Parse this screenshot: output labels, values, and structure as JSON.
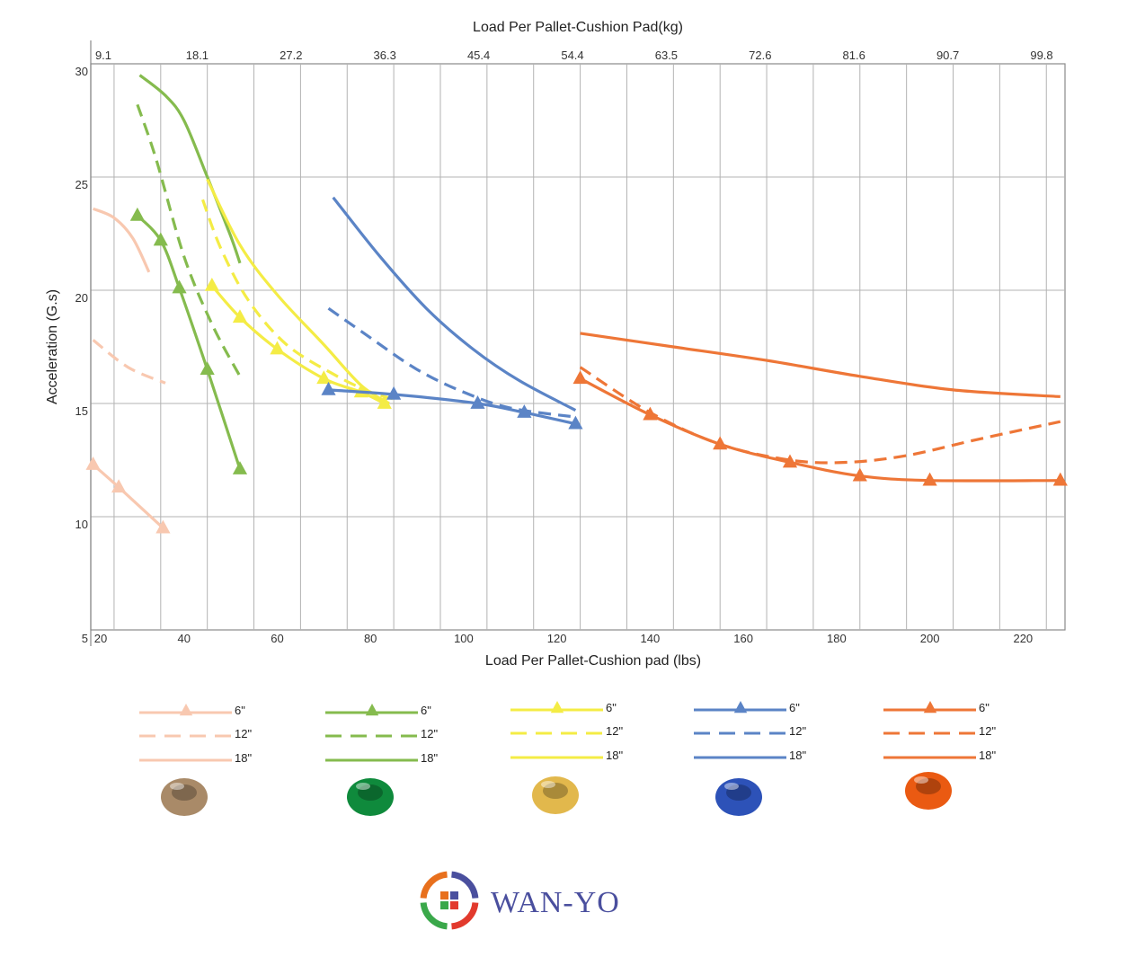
{
  "chart_data": {
    "type": "line",
    "top_axis_label": "Load Per Pallet-Cushion Pad(kg)",
    "top_ticks": [
      "9.1",
      "18.1",
      "27.2",
      "36.3",
      "45.4",
      "54.4",
      "63.5",
      "72.6",
      "81.6",
      "90.7",
      "99.8"
    ],
    "xlabel": "Load Per Pallet-Cushion pad (lbs)",
    "ylabel": "Acceleration (G.s)",
    "xlim": [
      20,
      229
    ],
    "ylim": [
      5,
      30
    ],
    "x_ticks": [
      "20",
      "40",
      "60",
      "80",
      "100",
      "120",
      "140",
      "160",
      "180",
      "200",
      "220"
    ],
    "y_ticks": [
      "5",
      "10",
      "15",
      "20",
      "25",
      "30"
    ],
    "grid": true,
    "series": [
      {
        "color": "#f8c8b0",
        "thickness": "6\"",
        "style": "solid",
        "marker": "triangle",
        "points": [
          [
            20.5,
            12.3
          ],
          [
            26,
            11.3
          ],
          [
            35.5,
            9.5
          ]
        ]
      },
      {
        "color": "#f8c8b0",
        "thickness": "12\"",
        "style": "dashed",
        "marker": "none",
        "points": [
          [
            20.5,
            17.8
          ],
          [
            28,
            16.6
          ],
          [
            36,
            15.9
          ]
        ]
      },
      {
        "color": "#f8c8b0",
        "thickness": "18\"",
        "style": "solid",
        "marker": "none",
        "points": [
          [
            20.5,
            23.6
          ],
          [
            25,
            23.2
          ],
          [
            29,
            22.3
          ],
          [
            32.5,
            20.8
          ]
        ]
      },
      {
        "color": "#85bb4e",
        "thickness": "6\"",
        "style": "solid",
        "marker": "triangle",
        "points": [
          [
            30,
            23.3
          ],
          [
            35,
            22.2
          ],
          [
            39,
            20.1
          ],
          [
            45,
            16.5
          ],
          [
            52,
            12.1
          ]
        ]
      },
      {
        "color": "#85bb4e",
        "thickness": "12\"",
        "style": "dashed",
        "marker": "none",
        "points": [
          [
            30,
            28.2
          ],
          [
            34,
            25.8
          ],
          [
            40,
            21.5
          ],
          [
            46,
            18.5
          ],
          [
            52,
            16.2
          ]
        ]
      },
      {
        "color": "#85bb4e",
        "thickness": "18\"",
        "style": "solid",
        "marker": "none",
        "points": [
          [
            30.5,
            29.5
          ],
          [
            36,
            28.6
          ],
          [
            40,
            27.5
          ],
          [
            45,
            25.0
          ],
          [
            50,
            22.4
          ],
          [
            52,
            21.2
          ]
        ]
      },
      {
        "color": "#f4ec45",
        "thickness": "6\"",
        "style": "solid",
        "marker": "triangle",
        "points": [
          [
            46,
            20.2
          ],
          [
            52,
            18.8
          ],
          [
            60,
            17.4
          ],
          [
            70,
            16.1
          ],
          [
            78,
            15.5
          ],
          [
            83,
            15.0
          ]
        ]
      },
      {
        "color": "#f4ec45",
        "thickness": "12\"",
        "style": "dashed",
        "marker": "none",
        "points": [
          [
            44,
            24.0
          ],
          [
            48,
            21.8
          ],
          [
            54,
            19.5
          ],
          [
            62,
            17.6
          ],
          [
            72,
            16.3
          ],
          [
            80,
            15.5
          ],
          [
            85,
            15.2
          ]
        ]
      },
      {
        "color": "#f4ec45",
        "thickness": "18\"",
        "style": "solid",
        "marker": "none",
        "points": [
          [
            45,
            24.9
          ],
          [
            52,
            22.0
          ],
          [
            60,
            19.8
          ],
          [
            70,
            17.6
          ],
          [
            78,
            15.8
          ],
          [
            84,
            15.0
          ]
        ]
      },
      {
        "color": "#5b84c6",
        "thickness": "6\"",
        "style": "solid",
        "marker": "triangle",
        "points": [
          [
            71,
            15.6
          ],
          [
            85,
            15.4
          ],
          [
            103,
            15.0
          ],
          [
            113,
            14.6
          ],
          [
            124,
            14.1
          ]
        ]
      },
      {
        "color": "#5b84c6",
        "thickness": "12\"",
        "style": "dashed",
        "marker": "none",
        "points": [
          [
            71,
            19.2
          ],
          [
            80,
            17.9
          ],
          [
            90,
            16.5
          ],
          [
            100,
            15.5
          ],
          [
            110,
            14.8
          ],
          [
            124,
            14.4
          ]
        ]
      },
      {
        "color": "#5b84c6",
        "thickness": "18\"",
        "style": "solid",
        "marker": "none",
        "points": [
          [
            72,
            24.1
          ],
          [
            82,
            21.5
          ],
          [
            92,
            19.2
          ],
          [
            102,
            17.4
          ],
          [
            112,
            16.0
          ],
          [
            124,
            14.7
          ]
        ]
      },
      {
        "color": "#ee7637",
        "thickness": "6\"",
        "style": "solid",
        "marker": "triangle",
        "points": [
          [
            125,
            16.1
          ],
          [
            140,
            14.5
          ],
          [
            155,
            13.2
          ],
          [
            170,
            12.4
          ],
          [
            185,
            11.8
          ],
          [
            200,
            11.6
          ],
          [
            228,
            11.6
          ]
        ]
      },
      {
        "color": "#ee7637",
        "thickness": "12\"",
        "style": "dashed",
        "marker": "none",
        "points": [
          [
            125,
            16.6
          ],
          [
            140,
            14.6
          ],
          [
            155,
            13.2
          ],
          [
            170,
            12.5
          ],
          [
            182,
            12.4
          ],
          [
            195,
            12.7
          ],
          [
            210,
            13.4
          ],
          [
            228,
            14.2
          ]
        ]
      },
      {
        "color": "#ee7637",
        "thickness": "18\"",
        "style": "solid",
        "marker": "none",
        "points": [
          [
            125,
            18.1
          ],
          [
            145,
            17.5
          ],
          [
            165,
            16.9
          ],
          [
            185,
            16.2
          ],
          [
            205,
            15.6
          ],
          [
            228,
            15.3
          ]
        ]
      }
    ]
  },
  "legend": {
    "groups": [
      {
        "color": "#f8c8b0",
        "pad_color": "#a98a68",
        "entries": [
          "6\"",
          "12\"",
          "18\""
        ]
      },
      {
        "color": "#85bb4e",
        "pad_color": "#0f8a3c",
        "entries": [
          "6\"",
          "12\"",
          "18\""
        ]
      },
      {
        "color": "#f4ec45",
        "pad_color": "#e2b84c",
        "entries": [
          "6\"",
          "12\"",
          "18\""
        ]
      },
      {
        "color": "#5b84c6",
        "pad_color": "#2d52b8",
        "entries": [
          "6\"",
          "12\"",
          "18\""
        ]
      },
      {
        "color": "#ee7637",
        "pad_color": "#ea5a12",
        "entries": [
          "6\"",
          "12\"",
          "18\""
        ]
      }
    ]
  },
  "brand": {
    "name": "WAN-YO",
    "colors": [
      "#e8701d",
      "#4a4f9e",
      "#3aa84a",
      "#e23a2d"
    ]
  }
}
